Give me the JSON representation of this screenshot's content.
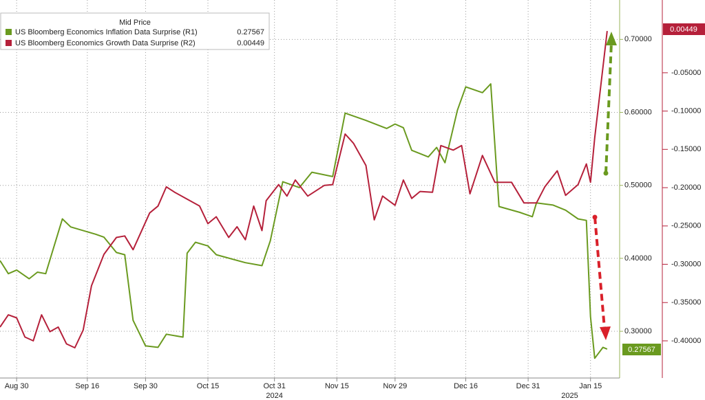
{
  "chart_data": {
    "type": "line",
    "legend_title": "Mid Price",
    "legend": "top-left",
    "grid": true,
    "xlim": [
      "2024-08-26",
      "2025-01-22"
    ],
    "xticks": [
      {
        "value": "2024-08-30",
        "label": "Aug 30"
      },
      {
        "value": "2024-09-16",
        "label": "Sep 16"
      },
      {
        "value": "2024-09-30",
        "label": "Sep 30"
      },
      {
        "value": "2024-10-15",
        "label": "Oct 15"
      },
      {
        "value": "2024-10-31",
        "label": "Oct 31"
      },
      {
        "value": "2024-11-15",
        "label": "Nov 15"
      },
      {
        "value": "2024-11-29",
        "label": "Nov 29"
      },
      {
        "value": "2024-12-16",
        "label": "Dec 16"
      },
      {
        "value": "2024-12-31",
        "label": "Dec 31"
      },
      {
        "value": "2025-01-15",
        "label": "Jan 15"
      }
    ],
    "year_labels": [
      {
        "value": "2024-10-31",
        "label": "2024"
      },
      {
        "value": "2025-01-10",
        "label": "2025"
      }
    ],
    "ylim": [
      0.236,
      0.754
    ],
    "yticks": [
      {
        "value": 0.3,
        "label": "0.30000"
      },
      {
        "value": 0.4,
        "label": "0.40000"
      },
      {
        "value": 0.5,
        "label": "0.50000"
      },
      {
        "value": 0.6,
        "label": "0.60000"
      },
      {
        "value": 0.7,
        "label": "0.70000"
      }
    ],
    "y2lim": [
      -0.4485,
      0.045
    ],
    "y2ticks": [
      {
        "value": -0.4,
        "label": "-0.40000"
      },
      {
        "value": -0.35,
        "label": "-0.35000"
      },
      {
        "value": -0.3,
        "label": "-0.30000"
      },
      {
        "value": -0.25,
        "label": "-0.25000"
      },
      {
        "value": -0.2,
        "label": "-0.20000"
      },
      {
        "value": -0.15,
        "label": "-0.15000"
      },
      {
        "value": -0.1,
        "label": "-0.10000"
      },
      {
        "value": -0.05,
        "label": "-0.05000"
      }
    ],
    "series": [
      {
        "name": "US Bloomberg Economics Inflation Data Surprise (R1)",
        "color": "#6a9a1f",
        "axis": "y",
        "x": [
          "2024-08-26",
          "2024-08-28",
          "2024-08-30",
          "2024-09-02",
          "2024-09-04",
          "2024-09-06",
          "2024-09-10",
          "2024-09-12",
          "2024-09-18",
          "2024-09-20",
          "2024-09-23",
          "2024-09-25",
          "2024-09-27",
          "2024-09-30",
          "2024-10-03",
          "2024-10-05",
          "2024-10-09",
          "2024-10-10",
          "2024-10-12",
          "2024-10-15",
          "2024-10-17",
          "2024-10-24",
          "2024-10-28",
          "2024-10-30",
          "2024-11-02",
          "2024-11-06",
          "2024-11-09",
          "2024-11-14",
          "2024-11-17",
          "2024-11-22",
          "2024-11-27",
          "2024-11-29",
          "2024-12-01",
          "2024-12-03",
          "2024-12-07",
          "2024-12-09",
          "2024-12-11",
          "2024-12-14",
          "2024-12-16",
          "2024-12-20",
          "2024-12-22",
          "2024-12-24",
          "2024-12-29",
          "2025-01-01",
          "2025-01-02",
          "2025-01-06",
          "2025-01-09",
          "2025-01-12",
          "2025-01-14",
          "2025-01-15",
          "2025-01-16",
          "2025-01-18",
          "2025-01-19"
        ],
        "values": [
          0.397,
          0.379,
          0.384,
          0.372,
          0.381,
          0.379,
          0.454,
          0.443,
          0.433,
          0.429,
          0.408,
          0.405,
          0.315,
          0.28,
          0.278,
          0.296,
          0.292,
          0.407,
          0.422,
          0.417,
          0.405,
          0.394,
          0.39,
          0.424,
          0.505,
          0.497,
          0.518,
          0.512,
          0.599,
          0.589,
          0.578,
          0.584,
          0.579,
          0.548,
          0.539,
          0.552,
          0.531,
          0.603,
          0.635,
          0.627,
          0.639,
          0.471,
          0.463,
          0.457,
          0.476,
          0.473,
          0.466,
          0.454,
          0.452,
          0.32,
          0.263,
          0.278,
          0.27567
        ]
      },
      {
        "name": "US Bloomberg Economics Growth Data Surprise (R2)",
        "color": "#b5203a",
        "axis": "y2",
        "x": [
          "2024-08-26",
          "2024-08-28",
          "2024-08-30",
          "2024-09-01",
          "2024-09-03",
          "2024-09-05",
          "2024-09-07",
          "2024-09-09",
          "2024-09-11",
          "2024-09-13",
          "2024-09-15",
          "2024-09-17",
          "2024-09-20",
          "2024-09-23",
          "2024-09-25",
          "2024-09-27",
          "2024-10-01",
          "2024-10-03",
          "2024-10-05",
          "2024-10-07",
          "2024-10-10",
          "2024-10-13",
          "2024-10-15",
          "2024-10-17",
          "2024-10-20",
          "2024-10-22",
          "2024-10-24",
          "2024-10-26",
          "2024-10-28",
          "2024-10-29",
          "2024-11-01",
          "2024-11-03",
          "2024-11-05",
          "2024-11-08",
          "2024-11-12",
          "2024-11-14",
          "2024-11-17",
          "2024-11-19",
          "2024-11-22",
          "2024-11-24",
          "2024-11-26",
          "2024-11-29",
          "2024-12-01",
          "2024-12-03",
          "2024-12-05",
          "2024-12-08",
          "2024-12-10",
          "2024-12-13",
          "2024-12-15",
          "2024-12-17",
          "2024-12-20",
          "2024-12-23",
          "2024-12-27",
          "2024-12-30",
          "2025-01-02",
          "2025-01-04",
          "2025-01-07",
          "2025-01-09",
          "2025-01-12",
          "2025-01-14",
          "2025-01-15",
          "2025-01-16",
          "2025-01-19"
        ],
        "values": [
          -0.382,
          -0.366,
          -0.37,
          -0.395,
          -0.4,
          -0.366,
          -0.388,
          -0.382,
          -0.404,
          -0.409,
          -0.386,
          -0.328,
          -0.287,
          -0.265,
          -0.263,
          -0.281,
          -0.233,
          -0.224,
          -0.199,
          -0.206,
          -0.215,
          -0.224,
          -0.247,
          -0.238,
          -0.265,
          -0.251,
          -0.268,
          -0.224,
          -0.256,
          -0.217,
          -0.196,
          -0.211,
          -0.19,
          -0.211,
          -0.197,
          -0.196,
          -0.13,
          -0.142,
          -0.171,
          -0.242,
          -0.211,
          -0.223,
          -0.19,
          -0.214,
          -0.205,
          -0.206,
          -0.145,
          -0.151,
          -0.145,
          -0.208,
          -0.158,
          -0.193,
          -0.193,
          -0.22,
          -0.22,
          -0.199,
          -0.178,
          -0.21,
          -0.196,
          -0.169,
          -0.193,
          -0.135,
          0.00449
        ]
      }
    ]
  }
}
